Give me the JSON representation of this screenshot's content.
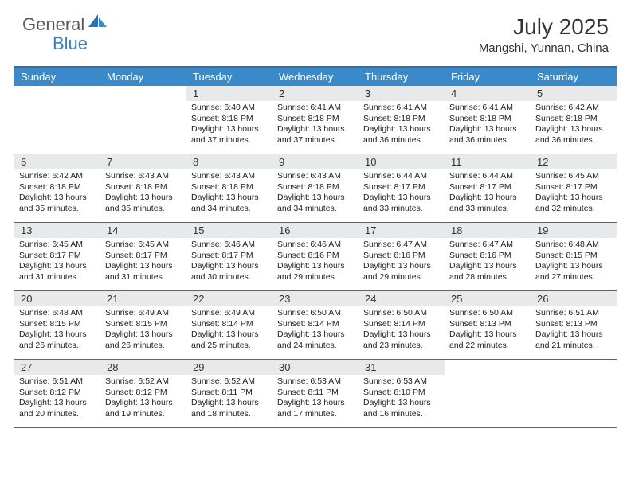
{
  "logo": {
    "text1": "General",
    "text2": "Blue"
  },
  "title": "July 2025",
  "subtitle": "Mangshi, Yunnan, China",
  "colors": {
    "header_bg": "#3a8ac9",
    "header_text": "#ffffff",
    "border": "#2d6fb3",
    "daynum_bg": "#e8e9ea",
    "body_text": "#222222",
    "logo_gray": "#5a5a5a",
    "logo_blue": "#3a7fbf"
  },
  "dayHeaders": [
    "Sunday",
    "Monday",
    "Tuesday",
    "Wednesday",
    "Thursday",
    "Friday",
    "Saturday"
  ],
  "weeks": [
    [
      {
        "n": "",
        "sr": "",
        "ss": "",
        "dl": ""
      },
      {
        "n": "",
        "sr": "",
        "ss": "",
        "dl": ""
      },
      {
        "n": "1",
        "sr": "Sunrise: 6:40 AM",
        "ss": "Sunset: 8:18 PM",
        "dl": "Daylight: 13 hours and 37 minutes."
      },
      {
        "n": "2",
        "sr": "Sunrise: 6:41 AM",
        "ss": "Sunset: 8:18 PM",
        "dl": "Daylight: 13 hours and 37 minutes."
      },
      {
        "n": "3",
        "sr": "Sunrise: 6:41 AM",
        "ss": "Sunset: 8:18 PM",
        "dl": "Daylight: 13 hours and 36 minutes."
      },
      {
        "n": "4",
        "sr": "Sunrise: 6:41 AM",
        "ss": "Sunset: 8:18 PM",
        "dl": "Daylight: 13 hours and 36 minutes."
      },
      {
        "n": "5",
        "sr": "Sunrise: 6:42 AM",
        "ss": "Sunset: 8:18 PM",
        "dl": "Daylight: 13 hours and 36 minutes."
      }
    ],
    [
      {
        "n": "6",
        "sr": "Sunrise: 6:42 AM",
        "ss": "Sunset: 8:18 PM",
        "dl": "Daylight: 13 hours and 35 minutes."
      },
      {
        "n": "7",
        "sr": "Sunrise: 6:43 AM",
        "ss": "Sunset: 8:18 PM",
        "dl": "Daylight: 13 hours and 35 minutes."
      },
      {
        "n": "8",
        "sr": "Sunrise: 6:43 AM",
        "ss": "Sunset: 8:18 PM",
        "dl": "Daylight: 13 hours and 34 minutes."
      },
      {
        "n": "9",
        "sr": "Sunrise: 6:43 AM",
        "ss": "Sunset: 8:18 PM",
        "dl": "Daylight: 13 hours and 34 minutes."
      },
      {
        "n": "10",
        "sr": "Sunrise: 6:44 AM",
        "ss": "Sunset: 8:17 PM",
        "dl": "Daylight: 13 hours and 33 minutes."
      },
      {
        "n": "11",
        "sr": "Sunrise: 6:44 AM",
        "ss": "Sunset: 8:17 PM",
        "dl": "Daylight: 13 hours and 33 minutes."
      },
      {
        "n": "12",
        "sr": "Sunrise: 6:45 AM",
        "ss": "Sunset: 8:17 PM",
        "dl": "Daylight: 13 hours and 32 minutes."
      }
    ],
    [
      {
        "n": "13",
        "sr": "Sunrise: 6:45 AM",
        "ss": "Sunset: 8:17 PM",
        "dl": "Daylight: 13 hours and 31 minutes."
      },
      {
        "n": "14",
        "sr": "Sunrise: 6:45 AM",
        "ss": "Sunset: 8:17 PM",
        "dl": "Daylight: 13 hours and 31 minutes."
      },
      {
        "n": "15",
        "sr": "Sunrise: 6:46 AM",
        "ss": "Sunset: 8:17 PM",
        "dl": "Daylight: 13 hours and 30 minutes."
      },
      {
        "n": "16",
        "sr": "Sunrise: 6:46 AM",
        "ss": "Sunset: 8:16 PM",
        "dl": "Daylight: 13 hours and 29 minutes."
      },
      {
        "n": "17",
        "sr": "Sunrise: 6:47 AM",
        "ss": "Sunset: 8:16 PM",
        "dl": "Daylight: 13 hours and 29 minutes."
      },
      {
        "n": "18",
        "sr": "Sunrise: 6:47 AM",
        "ss": "Sunset: 8:16 PM",
        "dl": "Daylight: 13 hours and 28 minutes."
      },
      {
        "n": "19",
        "sr": "Sunrise: 6:48 AM",
        "ss": "Sunset: 8:15 PM",
        "dl": "Daylight: 13 hours and 27 minutes."
      }
    ],
    [
      {
        "n": "20",
        "sr": "Sunrise: 6:48 AM",
        "ss": "Sunset: 8:15 PM",
        "dl": "Daylight: 13 hours and 26 minutes."
      },
      {
        "n": "21",
        "sr": "Sunrise: 6:49 AM",
        "ss": "Sunset: 8:15 PM",
        "dl": "Daylight: 13 hours and 26 minutes."
      },
      {
        "n": "22",
        "sr": "Sunrise: 6:49 AM",
        "ss": "Sunset: 8:14 PM",
        "dl": "Daylight: 13 hours and 25 minutes."
      },
      {
        "n": "23",
        "sr": "Sunrise: 6:50 AM",
        "ss": "Sunset: 8:14 PM",
        "dl": "Daylight: 13 hours and 24 minutes."
      },
      {
        "n": "24",
        "sr": "Sunrise: 6:50 AM",
        "ss": "Sunset: 8:14 PM",
        "dl": "Daylight: 13 hours and 23 minutes."
      },
      {
        "n": "25",
        "sr": "Sunrise: 6:50 AM",
        "ss": "Sunset: 8:13 PM",
        "dl": "Daylight: 13 hours and 22 minutes."
      },
      {
        "n": "26",
        "sr": "Sunrise: 6:51 AM",
        "ss": "Sunset: 8:13 PM",
        "dl": "Daylight: 13 hours and 21 minutes."
      }
    ],
    [
      {
        "n": "27",
        "sr": "Sunrise: 6:51 AM",
        "ss": "Sunset: 8:12 PM",
        "dl": "Daylight: 13 hours and 20 minutes."
      },
      {
        "n": "28",
        "sr": "Sunrise: 6:52 AM",
        "ss": "Sunset: 8:12 PM",
        "dl": "Daylight: 13 hours and 19 minutes."
      },
      {
        "n": "29",
        "sr": "Sunrise: 6:52 AM",
        "ss": "Sunset: 8:11 PM",
        "dl": "Daylight: 13 hours and 18 minutes."
      },
      {
        "n": "30",
        "sr": "Sunrise: 6:53 AM",
        "ss": "Sunset: 8:11 PM",
        "dl": "Daylight: 13 hours and 17 minutes."
      },
      {
        "n": "31",
        "sr": "Sunrise: 6:53 AM",
        "ss": "Sunset: 8:10 PM",
        "dl": "Daylight: 13 hours and 16 minutes."
      },
      {
        "n": "",
        "sr": "",
        "ss": "",
        "dl": ""
      },
      {
        "n": "",
        "sr": "",
        "ss": "",
        "dl": ""
      }
    ]
  ]
}
